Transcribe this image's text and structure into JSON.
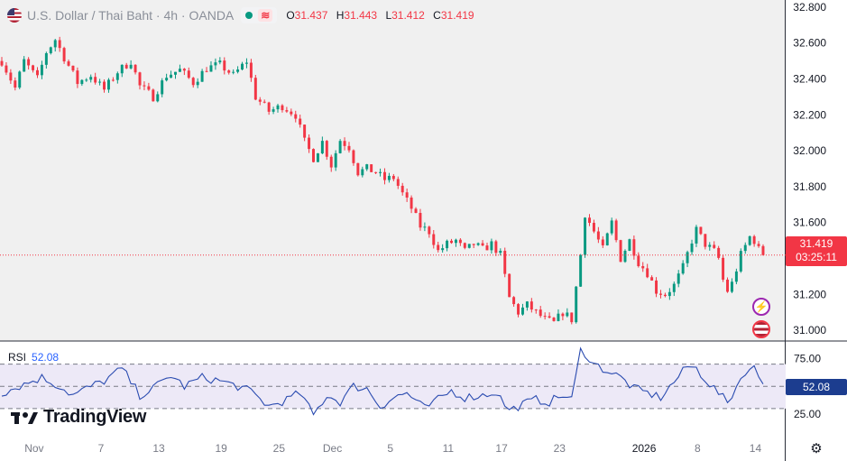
{
  "header": {
    "symbol": "U.S. Dollar / Thai Baht · 4h · OANDA",
    "wave_icon": "≋",
    "ohlc": {
      "o_label": "O",
      "o": "31.437",
      "h_label": "H",
      "h": "31.443",
      "l_label": "L",
      "l": "31.412",
      "c_label": "C",
      "c": "31.419"
    }
  },
  "price_tag": {
    "price": "31.419",
    "countdown": "03:25:11"
  },
  "rsi": {
    "label": "RSI",
    "value": "52.08",
    "tag": "52.08"
  },
  "brand": {
    "name": "TradingView"
  },
  "colors": {
    "up": "#089981",
    "down": "#f23645",
    "rsi_line": "#2a4bb0",
    "rsi_band": "#ede9f7"
  },
  "chart_data": [
    {
      "type": "candlestick",
      "title": "U.S. Dollar / Thai Baht · 4h · OANDA",
      "y_ticks": [
        "32.800",
        "32.600",
        "32.400",
        "32.200",
        "32.000",
        "31.800",
        "31.600",
        "31.400",
        "31.200",
        "31.000"
      ],
      "y_tick_values": [
        32.8,
        32.6,
        32.4,
        32.2,
        32.0,
        31.8,
        31.6,
        31.4,
        31.2,
        31.0
      ],
      "ylim": [
        30.94,
        32.84
      ],
      "x_ticks": [
        "Nov",
        "7",
        "13",
        "19",
        "25",
        "Dec",
        "5",
        "11",
        "17",
        "23",
        "2026",
        "8",
        "14"
      ],
      "last_price": 31.419,
      "anchors": [
        [
          0,
          32.5
        ],
        [
          3,
          32.35
        ],
        [
          5,
          32.5
        ],
        [
          8,
          32.4
        ],
        [
          10,
          32.55
        ],
        [
          12,
          32.62
        ],
        [
          14,
          32.52
        ],
        [
          17,
          32.38
        ],
        [
          20,
          32.42
        ],
        [
          23,
          32.34
        ],
        [
          26,
          32.44
        ],
        [
          29,
          32.5
        ],
        [
          31,
          32.36
        ],
        [
          34,
          32.3
        ],
        [
          37,
          32.42
        ],
        [
          40,
          32.45
        ],
        [
          43,
          32.38
        ],
        [
          46,
          32.46
        ],
        [
          49,
          32.48
        ],
        [
          52,
          32.42
        ],
        [
          55,
          32.5
        ],
        [
          57,
          32.3
        ],
        [
          60,
          32.22
        ],
        [
          63,
          32.25
        ],
        [
          66,
          32.2
        ],
        [
          68,
          32.05
        ],
        [
          70,
          31.96
        ],
        [
          72,
          32.05
        ],
        [
          74,
          31.92
        ],
        [
          76,
          32.06
        ],
        [
          78,
          32.02
        ],
        [
          80,
          31.88
        ],
        [
          82,
          31.9
        ],
        [
          84,
          31.88
        ],
        [
          86,
          31.84
        ],
        [
          88,
          31.85
        ],
        [
          90,
          31.76
        ],
        [
          92,
          31.68
        ],
        [
          94,
          31.58
        ],
        [
          96,
          31.55
        ],
        [
          98,
          31.44
        ],
        [
          100,
          31.48
        ],
        [
          102,
          31.5
        ],
        [
          104,
          31.44
        ],
        [
          106,
          31.48
        ],
        [
          108,
          31.45
        ],
        [
          110,
          31.48
        ],
        [
          112,
          31.42
        ],
        [
          114,
          31.18
        ],
        [
          116,
          31.1
        ],
        [
          118,
          31.14
        ],
        [
          120,
          31.1
        ],
        [
          122,
          31.06
        ],
        [
          124,
          31.04
        ],
        [
          126,
          31.1
        ],
        [
          128,
          31.06
        ],
        [
          130,
          31.42
        ],
        [
          131,
          31.65
        ],
        [
          133,
          31.55
        ],
        [
          135,
          31.45
        ],
        [
          137,
          31.6
        ],
        [
          139,
          31.4
        ],
        [
          141,
          31.5
        ],
        [
          143,
          31.38
        ],
        [
          145,
          31.32
        ],
        [
          147,
          31.22
        ],
        [
          149,
          31.2
        ],
        [
          151,
          31.25
        ],
        [
          153,
          31.35
        ],
        [
          155,
          31.5
        ],
        [
          156,
          31.56
        ],
        [
          158,
          31.48
        ],
        [
          160,
          31.44
        ],
        [
          161,
          31.4
        ],
        [
          162,
          31.28
        ],
        [
          163,
          31.22
        ],
        [
          164,
          31.26
        ],
        [
          166,
          31.42
        ],
        [
          168,
          31.52
        ],
        [
          169,
          31.5
        ],
        [
          170,
          31.45
        ],
        [
          171,
          31.419
        ]
      ]
    },
    {
      "type": "line",
      "title": "RSI",
      "y_ticks": [
        "75.00",
        "25.00"
      ],
      "y_tick_values": [
        75,
        25
      ],
      "ylim": [
        8,
        90
      ],
      "band": [
        30,
        70
      ],
      "midline": 50,
      "x_ticks": [
        "Nov",
        "7",
        "13",
        "19",
        "25",
        "Dec",
        "5",
        "11",
        "17",
        "23",
        "2026",
        "8",
        "14"
      ],
      "last_value": 52.08,
      "anchors": [
        [
          0,
          44
        ],
        [
          5,
          52
        ],
        [
          9,
          58
        ],
        [
          13,
          50
        ],
        [
          16,
          42
        ],
        [
          19,
          48
        ],
        [
          23,
          55
        ],
        [
          27,
          66
        ],
        [
          31,
          42
        ],
        [
          34,
          48
        ],
        [
          38,
          60
        ],
        [
          41,
          50
        ],
        [
          45,
          58
        ],
        [
          49,
          55
        ],
        [
          53,
          50
        ],
        [
          56,
          45
        ],
        [
          60,
          32
        ],
        [
          64,
          38
        ],
        [
          67,
          44
        ],
        [
          70,
          24
        ],
        [
          73,
          42
        ],
        [
          76,
          36
        ],
        [
          79,
          50
        ],
        [
          82,
          48
        ],
        [
          85,
          32
        ],
        [
          88,
          40
        ],
        [
          91,
          44
        ],
        [
          95,
          30
        ],
        [
          98,
          38
        ],
        [
          101,
          46
        ],
        [
          104,
          40
        ],
        [
          108,
          42
        ],
        [
          111,
          45
        ],
        [
          114,
          28
        ],
        [
          117,
          34
        ],
        [
          120,
          38
        ],
        [
          123,
          36
        ],
        [
          126,
          42
        ],
        [
          128,
          38
        ],
        [
          130,
          82
        ],
        [
          131,
          80
        ],
        [
          133,
          70
        ],
        [
          136,
          64
        ],
        [
          139,
          58
        ],
        [
          142,
          48
        ],
        [
          145,
          44
        ],
        [
          148,
          40
        ],
        [
          151,
          54
        ],
        [
          154,
          68
        ],
        [
          156,
          66
        ],
        [
          159,
          52
        ],
        [
          161,
          44
        ],
        [
          163,
          35
        ],
        [
          165,
          50
        ],
        [
          167,
          64
        ],
        [
          169,
          66
        ],
        [
          171,
          52.08
        ]
      ]
    }
  ]
}
